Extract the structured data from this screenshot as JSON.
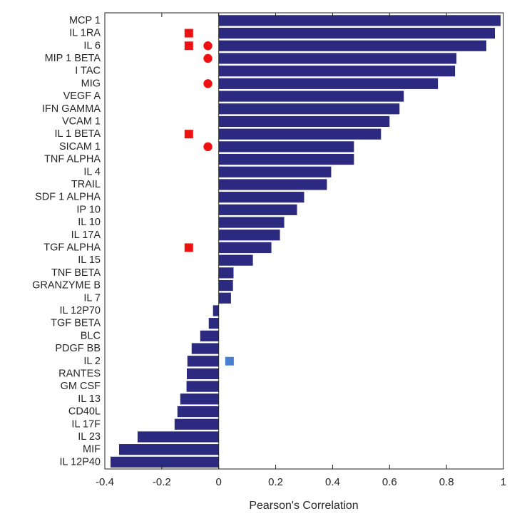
{
  "chart_data": {
    "type": "bar",
    "orientation": "horizontal",
    "title": "",
    "xlabel": "Pearson's Correlation",
    "ylabel": "",
    "xlim": [
      -0.4,
      1
    ],
    "xticks": [
      -0.4,
      -0.2,
      0,
      0.2,
      0.4,
      0.6,
      0.8,
      1
    ],
    "xtick_labels": [
      "-0.4",
      "-0.2",
      "0",
      "0.2",
      "0.4",
      "0.6",
      "0.8",
      "1"
    ],
    "grid": false,
    "bar_color": "#2b2a80",
    "categories": [
      "MCP 1",
      "IL 1RA",
      "IL 6",
      "MIP 1 BETA",
      "I TAC",
      "MIG",
      "VEGF A",
      "IFN GAMMA",
      "VCAM 1",
      "IL 1 BETA",
      "SICAM 1",
      "TNF ALPHA",
      "IL 4",
      "TRAIL",
      "SDF 1 ALPHA",
      "IP 10",
      "IL 10",
      "IL 17A",
      "TGF ALPHA",
      "IL 15",
      "TNF BETA",
      "GRANZYME B",
      "IL 7",
      "IL 12P70",
      "TGF BETA",
      "BLC",
      "PDGF BB",
      "IL 2",
      "RANTES",
      "GM CSF",
      "IL 13",
      "CD40L",
      "IL 17F",
      "IL 23",
      "MIF",
      "IL 12P40"
    ],
    "values": [
      0.99,
      0.97,
      0.94,
      0.835,
      0.83,
      0.77,
      0.65,
      0.635,
      0.6,
      0.57,
      0.475,
      0.475,
      0.395,
      0.38,
      0.3,
      0.275,
      0.23,
      0.215,
      0.185,
      0.12,
      0.052,
      0.05,
      0.043,
      -0.02,
      -0.035,
      -0.065,
      -0.095,
      -0.11,
      -0.112,
      -0.113,
      -0.135,
      -0.145,
      -0.155,
      -0.285,
      -0.35,
      -0.38
    ],
    "markers": [
      {
        "category": "IL 1RA",
        "shape": "square",
        "x": -0.105,
        "color": "#ee1111"
      },
      {
        "category": "IL 6",
        "shape": "square",
        "x": -0.105,
        "color": "#ee1111"
      },
      {
        "category": "IL 6",
        "shape": "circle",
        "x": -0.038,
        "color": "#ee1111"
      },
      {
        "category": "MIP 1 BETA",
        "shape": "circle",
        "x": -0.038,
        "color": "#ee1111"
      },
      {
        "category": "MIG",
        "shape": "circle",
        "x": -0.038,
        "color": "#ee1111"
      },
      {
        "category": "IL 1 BETA",
        "shape": "square",
        "x": -0.105,
        "color": "#ee1111"
      },
      {
        "category": "SICAM 1",
        "shape": "circle",
        "x": -0.038,
        "color": "#ee1111"
      },
      {
        "category": "TGF ALPHA",
        "shape": "square",
        "x": -0.105,
        "color": "#ee1111"
      },
      {
        "category": "IL 2",
        "shape": "square",
        "x": 0.038,
        "color": "#4a7fd0"
      }
    ]
  }
}
